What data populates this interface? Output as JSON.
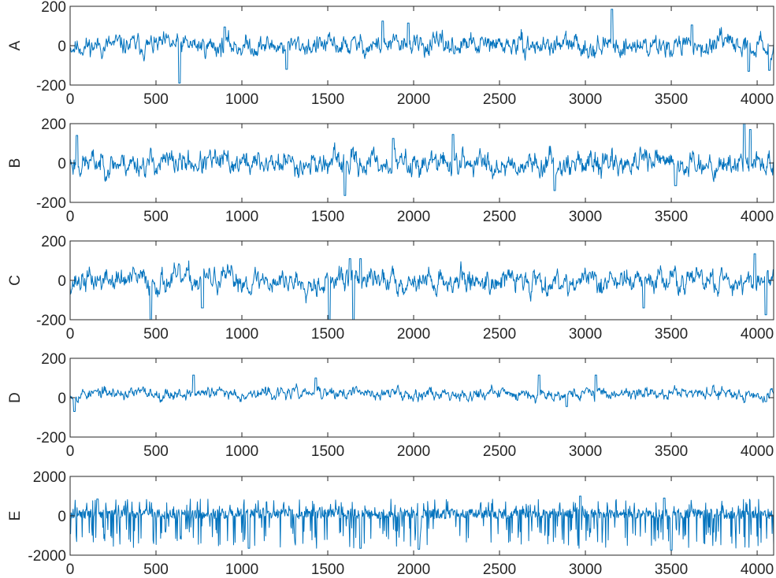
{
  "chart_data": {
    "type": "line",
    "title": "",
    "xlabel": "",
    "xlim": [
      0,
      4096
    ],
    "xticks": [
      0,
      500,
      1000,
      1500,
      2000,
      2500,
      3000,
      3500,
      4000
    ],
    "grid": false,
    "legend": "none",
    "line_color": "#0072BD",
    "panels": [
      {
        "ylabel": "A",
        "ylim": [
          -200,
          200
        ],
        "yticks": [
          -200,
          0,
          200
        ],
        "series": {
          "seed": 11,
          "amplitude": 38,
          "peaks": [
            [
              638,
              -190
            ],
            [
              3156,
              185
            ],
            [
              1820,
              125
            ],
            [
              1970,
              115
            ],
            [
              3620,
              105
            ],
            [
              3950,
              -130
            ],
            [
              4070,
              -125
            ],
            [
              900,
              95
            ],
            [
              1260,
              -120
            ]
          ]
        }
      },
      {
        "ylabel": "B",
        "ylim": [
          -200,
          200
        ],
        "yticks": [
          -200,
          0,
          200
        ],
        "series": {
          "seed": 23,
          "amplitude": 45,
          "peaks": [
            [
              40,
              140
            ],
            [
              3925,
              200
            ],
            [
              3960,
              170
            ],
            [
              1600,
              -165
            ],
            [
              1880,
              125
            ],
            [
              2230,
              145
            ],
            [
              2820,
              -140
            ],
            [
              3525,
              -115
            ]
          ]
        }
      },
      {
        "ylabel": "C",
        "ylim": [
          -200,
          200
        ],
        "yticks": [
          -200,
          0,
          200
        ],
        "series": {
          "seed": 37,
          "amplitude": 45,
          "peaks": [
            [
              470,
              -200
            ],
            [
              1510,
              -200
            ],
            [
              1650,
              -200
            ],
            [
              1630,
              110
            ],
            [
              1690,
              110
            ],
            [
              3985,
              135
            ],
            [
              4050,
              -175
            ],
            [
              770,
              -140
            ],
            [
              3340,
              -140
            ]
          ]
        }
      },
      {
        "ylabel": "D",
        "ylim": [
          -200,
          200
        ],
        "yticks": [
          -200,
          0,
          200
        ],
        "series": {
          "seed": 53,
          "amplitude": 22,
          "offset": 22,
          "peaks": [
            [
              25,
              -70
            ],
            [
              720,
              115
            ],
            [
              2730,
              115
            ],
            [
              3060,
              115
            ],
            [
              1430,
              100
            ],
            [
              2890,
              -45
            ],
            [
              4050,
              -20
            ]
          ]
        }
      },
      {
        "ylabel": "E",
        "ylim": [
          -2000,
          2000
        ],
        "yticks": [
          -2000,
          0,
          2000
        ],
        "series": {
          "seed": 71,
          "amplitude": 280,
          "spiky": true,
          "peaks": [
            [
              2970,
              1000
            ],
            [
              3460,
              900
            ],
            [
              3500,
              -1750
            ],
            [
              2030,
              -1700
            ],
            [
              1040,
              -1650
            ],
            [
              1690,
              -1650
            ],
            [
              160,
              850
            ]
          ]
        }
      }
    ]
  }
}
